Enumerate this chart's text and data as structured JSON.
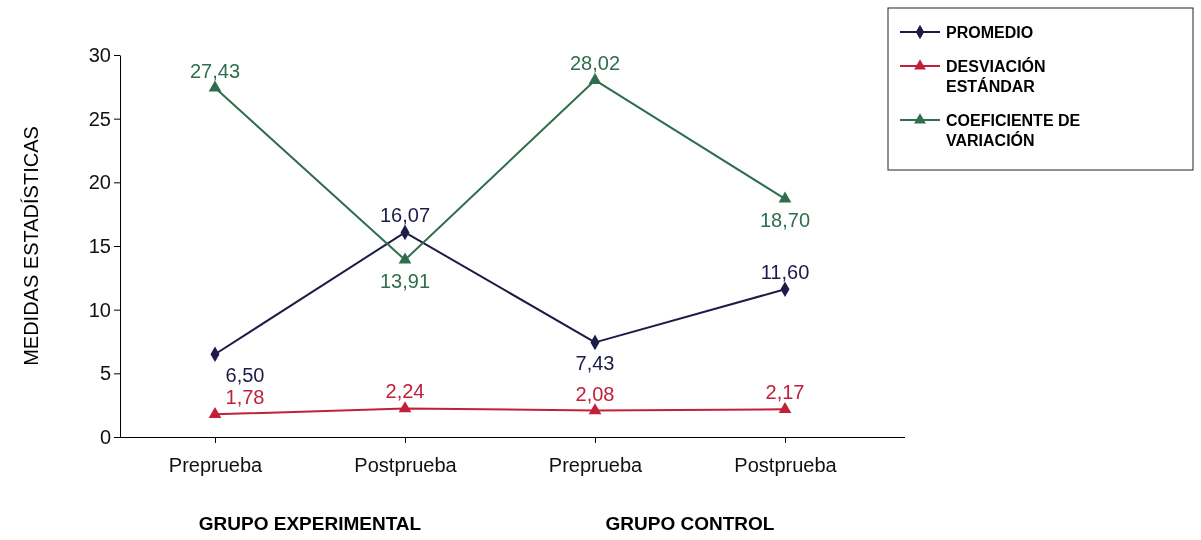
{
  "chart_data": {
    "type": "line",
    "ylabel": "MEDIDAS ESTADÍSTICAS",
    "categories": [
      "Preprueba",
      "Postprueba",
      "Preprueba",
      "Postprueba"
    ],
    "annotations": [
      "GRUPO EXPERIMENTAL",
      "GRUPO CONTROL"
    ],
    "ylim": [
      0,
      30
    ],
    "yticks": [
      0,
      5,
      10,
      15,
      20,
      25,
      30
    ],
    "grid": false,
    "legend": "top right",
    "series": [
      {
        "name": "PROMEDIO",
        "color": "#1c1c48",
        "marker": "diamond",
        "values": [
          6.5,
          16.07,
          7.43,
          11.6
        ],
        "value_labels": [
          "6,50",
          "16,07",
          "7,43",
          "11,60"
        ]
      },
      {
        "name": "DESVIACIÓN ESTÁNDAR",
        "color": "#c0203a",
        "marker": "triangle",
        "values": [
          1.78,
          2.24,
          2.08,
          2.17
        ],
        "value_labels": [
          "1,78",
          "2,24",
          "2,08",
          "2,17"
        ]
      },
      {
        "name": "COEFICIENTE DE VARIACIÓN",
        "color": "#2e6e4e",
        "marker": "triangle",
        "values": [
          27.43,
          13.91,
          28.02,
          18.7
        ],
        "value_labels": [
          "27,43",
          "13,91",
          "28,02",
          "18,70"
        ]
      }
    ]
  }
}
